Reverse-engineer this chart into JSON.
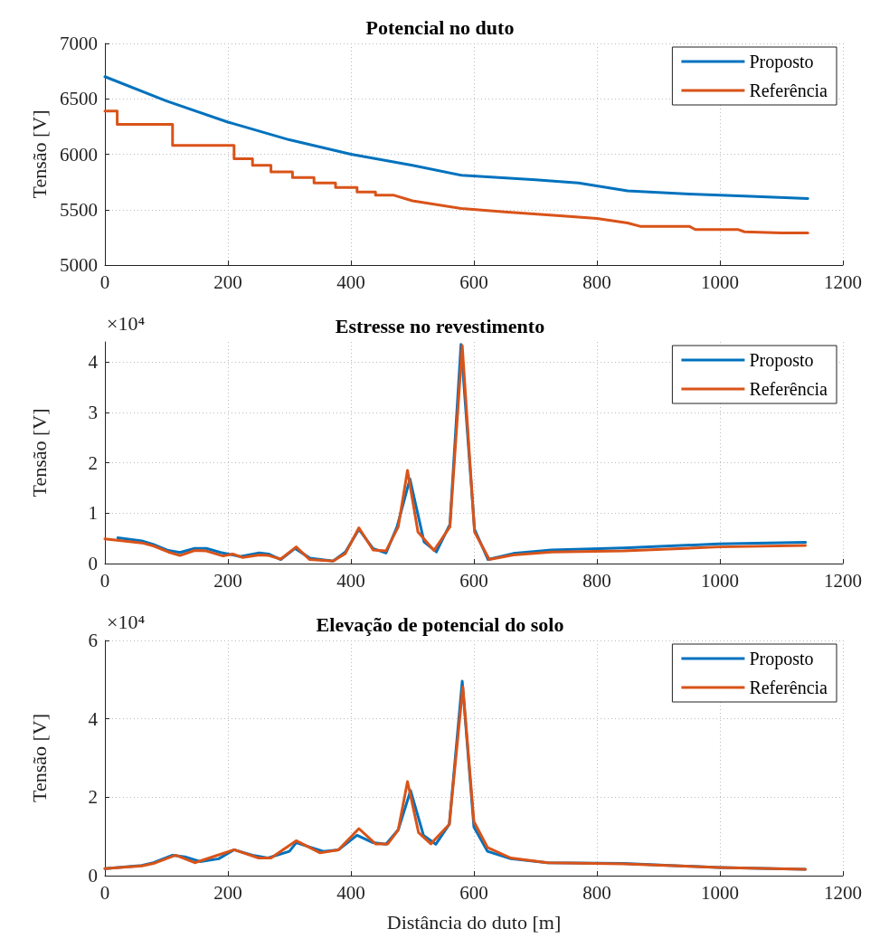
{
  "chart_data": [
    {
      "type": "line",
      "title": "Potencial no duto",
      "ylabel": "Tensão [V]",
      "xlim": [
        0,
        1200
      ],
      "xticks": [
        0,
        200,
        400,
        600,
        800,
        1000,
        1200
      ],
      "ylim": [
        5000,
        7000
      ],
      "yticks": [
        5000,
        5500,
        6000,
        6500,
        7000
      ],
      "grid": true,
      "legend": "top right",
      "marker": "none",
      "line_style": "solid",
      "series": [
        {
          "name": "Proposto",
          "color": "#0072bd",
          "x": [
            0,
            100,
            200,
            300,
            400,
            500,
            580,
            700,
            770,
            850,
            950,
            1050,
            1143
          ],
          "values": [
            6700,
            6480,
            6290,
            6130,
            6000,
            5900,
            5810,
            5770,
            5740,
            5670,
            5640,
            5620,
            5600
          ]
        },
        {
          "name": "Referência",
          "color": "#d95319",
          "x": [
            0,
            20,
            20,
            110,
            110,
            210,
            210,
            240,
            240,
            270,
            270,
            305,
            305,
            340,
            340,
            375,
            375,
            410,
            410,
            440,
            440,
            470,
            500,
            580,
            650,
            750,
            800,
            850,
            870,
            950,
            960,
            1030,
            1040,
            1100,
            1143
          ],
          "values": [
            6390,
            6390,
            6270,
            6270,
            6080,
            6080,
            5960,
            5960,
            5900,
            5900,
            5840,
            5840,
            5790,
            5790,
            5740,
            5740,
            5700,
            5700,
            5660,
            5660,
            5630,
            5630,
            5580,
            5510,
            5480,
            5440,
            5420,
            5380,
            5350,
            5350,
            5320,
            5320,
            5300,
            5290,
            5290
          ]
        }
      ]
    },
    {
      "type": "line",
      "title": "Estresse no revestimento",
      "ylabel": "Tensão [V]",
      "annotations": [
        "×10⁴"
      ],
      "xlim": [
        0,
        1200
      ],
      "xticks": [
        0,
        200,
        400,
        600,
        800,
        1000,
        1200
      ],
      "ylim": [
        0,
        4.4
      ],
      "yticks": [
        0,
        1,
        2,
        3,
        4
      ],
      "grid": true,
      "legend": "top right",
      "marker": "none",
      "line_style": "solid",
      "series": [
        {
          "name": "Proposto",
          "color": "#0072bd",
          "x": [
            21,
            60,
            79,
            103,
            122,
            146,
            165,
            188,
            220,
            251,
            266,
            286,
            309,
            333,
            371,
            391,
            413,
            436,
            457,
            475,
            496,
            519,
            539,
            561,
            579,
            601,
            623,
            664,
            726,
            843,
            998,
            1139
          ],
          "values": [
            0.51,
            0.45,
            0.38,
            0.26,
            0.22,
            0.3,
            0.3,
            0.22,
            0.14,
            0.21,
            0.19,
            0.08,
            0.3,
            0.11,
            0.05,
            0.23,
            0.68,
            0.3,
            0.21,
            0.73,
            1.68,
            0.43,
            0.23,
            0.78,
            4.35,
            0.68,
            0.08,
            0.2,
            0.27,
            0.31,
            0.39,
            0.42
          ]
        },
        {
          "name": "Referência",
          "color": "#d95319",
          "x": [
            0,
            60,
            79,
            103,
            122,
            146,
            165,
            192,
            208,
            224,
            251,
            266,
            286,
            311,
            333,
            371,
            391,
            413,
            436,
            457,
            477,
            492,
            509,
            535,
            561,
            581,
            601,
            625,
            664,
            726,
            843,
            998,
            1139
          ],
          "values": [
            0.49,
            0.41,
            0.35,
            0.23,
            0.16,
            0.26,
            0.25,
            0.15,
            0.19,
            0.12,
            0.17,
            0.16,
            0.09,
            0.33,
            0.08,
            0.05,
            0.2,
            0.71,
            0.27,
            0.25,
            0.73,
            1.85,
            0.63,
            0.26,
            0.73,
            4.33,
            0.63,
            0.08,
            0.17,
            0.23,
            0.25,
            0.33,
            0.36
          ]
        }
      ]
    },
    {
      "type": "line",
      "title": "Elevação de potencial do solo",
      "xlabel": "Distância do duto [m]",
      "ylabel": "Tensão [V]",
      "annotations": [
        "×10⁴"
      ],
      "xlim": [
        0,
        1200
      ],
      "xticks": [
        0,
        200,
        400,
        600,
        800,
        1000,
        1200
      ],
      "ylim": [
        0,
        6
      ],
      "yticks": [
        0,
        2,
        4,
        6
      ],
      "grid": true,
      "legend": "top right",
      "marker": "none",
      "line_style": "solid",
      "series": [
        {
          "name": "Proposto",
          "color": "#0072bd",
          "x": [
            0,
            60,
            79,
            110,
            130,
            155,
            185,
            210,
            240,
            265,
            300,
            311,
            355,
            380,
            410,
            436,
            457,
            477,
            497,
            518,
            538,
            560,
            581,
            600,
            622,
            660,
            720,
            843,
            998,
            1139
          ],
          "values": [
            0.18,
            0.26,
            0.33,
            0.52,
            0.48,
            0.36,
            0.43,
            0.66,
            0.52,
            0.45,
            0.62,
            0.84,
            0.62,
            0.66,
            1.03,
            0.84,
            0.8,
            1.17,
            2.17,
            1.03,
            0.8,
            1.31,
            4.96,
            1.24,
            0.62,
            0.43,
            0.33,
            0.31,
            0.21,
            0.16
          ]
        },
        {
          "name": "Referência",
          "color": "#d95319",
          "x": [
            0,
            60,
            79,
            115,
            146,
            210,
            250,
            270,
            311,
            350,
            380,
            413,
            440,
            460,
            477,
            492,
            510,
            530,
            560,
            582,
            600,
            622,
            660,
            720,
            843,
            998,
            1139
          ],
          "values": [
            0.18,
            0.25,
            0.31,
            0.52,
            0.33,
            0.66,
            0.45,
            0.45,
            0.89,
            0.58,
            0.66,
            1.2,
            0.81,
            0.81,
            1.17,
            2.4,
            1.1,
            0.81,
            1.31,
            4.82,
            1.38,
            0.72,
            0.45,
            0.33,
            0.3,
            0.21,
            0.16
          ]
        }
      ]
    }
  ]
}
